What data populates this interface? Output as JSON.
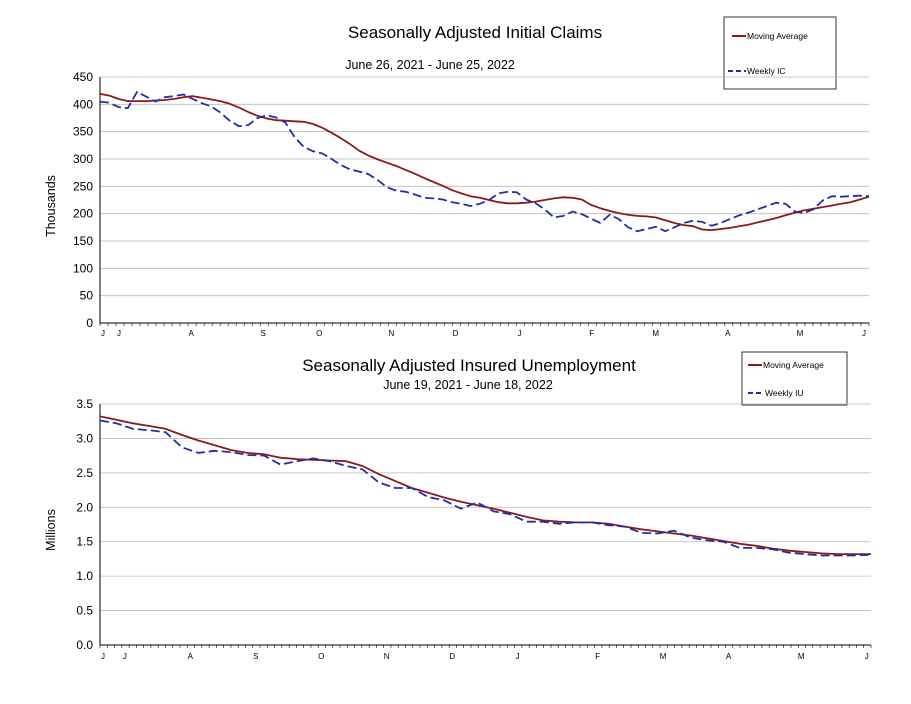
{
  "chart_data": [
    {
      "type": "line",
      "title": "Seasonally Adjusted Initial Claims",
      "subtitle": "June 26, 2021 - June 25, 2022",
      "ylabel": "Thousands",
      "xlabel": "",
      "ylim": [
        0,
        450
      ],
      "yticks": [
        0,
        50,
        100,
        150,
        200,
        250,
        300,
        350,
        400,
        450
      ],
      "grid": true,
      "legend_position": "top-right",
      "x_tick_labels": [
        "J",
        "J",
        "A",
        "S",
        "O",
        "N",
        "D",
        "J",
        "F",
        "M",
        "A",
        "M",
        "J"
      ],
      "x_tick_weeks": [
        0,
        2,
        11,
        20,
        27,
        36,
        44,
        52,
        61,
        69,
        78,
        87,
        95
      ],
      "series": [
        {
          "name": "Moving Average",
          "color": "#8b1a1a",
          "style": "solid",
          "values": [
            419,
            416,
            410,
            406,
            406,
            406,
            407,
            408,
            410,
            413,
            415,
            412,
            409,
            406,
            401,
            394,
            386,
            379,
            374,
            371,
            370,
            369,
            368,
            364,
            357,
            348,
            338,
            327,
            315,
            306,
            299,
            293,
            287,
            280,
            273,
            265,
            258,
            251,
            243,
            237,
            232,
            229,
            225,
            221,
            219,
            219,
            220,
            222,
            225,
            228,
            230,
            229,
            226,
            216,
            210,
            205,
            201,
            198,
            196,
            195,
            193,
            188,
            183,
            179,
            177,
            171,
            170,
            172,
            174,
            177,
            180,
            184,
            188,
            192,
            197,
            202,
            206,
            209,
            212,
            215,
            218,
            221,
            226,
            231
          ]
        },
        {
          "name": "Weekly IC",
          "color": "#1f2fa8",
          "style": "dashed",
          "values": [
            405,
            403,
            395,
            393,
            423,
            414,
            405,
            413,
            415,
            418,
            410,
            402,
            396,
            385,
            370,
            360,
            362,
            375,
            380,
            376,
            367,
            340,
            322,
            314,
            310,
            300,
            289,
            281,
            277,
            272,
            261,
            248,
            242,
            240,
            235,
            229,
            228,
            226,
            221,
            218,
            214,
            218,
            225,
            237,
            240,
            239,
            226,
            219,
            208,
            193,
            196,
            204,
            199,
            191,
            183,
            198,
            190,
            175,
            168,
            172,
            176,
            168,
            175,
            183,
            187,
            185,
            178,
            183,
            190,
            197,
            202,
            208,
            214,
            220,
            218,
            204,
            201,
            208,
            224,
            232,
            231,
            232,
            233,
            232
          ]
        }
      ]
    },
    {
      "type": "line",
      "title": "Seasonally Adjusted Insured Unemployment",
      "subtitle": "June 19, 2021 - June 18, 2022",
      "ylabel": "Millions",
      "xlabel": "",
      "ylim": [
        0.0,
        3.5
      ],
      "yticks": [
        "0.0",
        "0.5",
        "1.0",
        "1.5",
        "2.0",
        "2.5",
        "3.0",
        "3.5"
      ],
      "grid": true,
      "legend_position": "top-right",
      "x_tick_labels": [
        "J",
        "J",
        "A",
        "S",
        "O",
        "N",
        "D",
        "J",
        "F",
        "M",
        "A",
        "M",
        "J"
      ],
      "x_tick_weeks": [
        0,
        3,
        12,
        21,
        30,
        39,
        48,
        57,
        68,
        77,
        86,
        96,
        105
      ],
      "series": [
        {
          "name": "Moving Average",
          "color": "#8b1a1a",
          "style": "solid",
          "values": [
            3.32,
            3.27,
            3.22,
            3.18,
            3.14,
            3.05,
            2.97,
            2.9,
            2.83,
            2.79,
            2.77,
            2.72,
            2.7,
            2.69,
            2.68,
            2.67,
            2.6,
            2.48,
            2.38,
            2.28,
            2.21,
            2.14,
            2.08,
            2.03,
            1.98,
            1.92,
            1.86,
            1.81,
            1.79,
            1.78,
            1.78,
            1.76,
            1.72,
            1.68,
            1.65,
            1.62,
            1.59,
            1.55,
            1.51,
            1.47,
            1.44,
            1.4,
            1.37,
            1.35,
            1.33,
            1.32,
            1.32,
            1.32
          ]
        },
        {
          "name": "Weekly IU",
          "color": "#1f2fa8",
          "style": "dashed",
          "values": [
            3.26,
            3.22,
            3.14,
            3.12,
            3.09,
            2.87,
            2.79,
            2.82,
            2.8,
            2.76,
            2.75,
            2.62,
            2.67,
            2.71,
            2.67,
            2.6,
            2.55,
            2.36,
            2.28,
            2.28,
            2.15,
            2.1,
            1.98,
            2.07,
            1.94,
            1.9,
            1.79,
            1.79,
            1.76,
            1.78,
            1.78,
            1.74,
            1.72,
            1.63,
            1.62,
            1.66,
            1.56,
            1.52,
            1.5,
            1.41,
            1.41,
            1.39,
            1.34,
            1.32,
            1.3,
            1.3,
            1.3,
            1.31
          ]
        }
      ]
    }
  ]
}
